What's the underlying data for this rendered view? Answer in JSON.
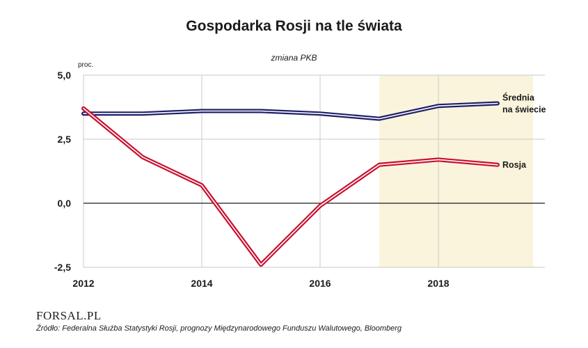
{
  "header": {
    "title": "Gospodarka Rosji na tle świata",
    "subtitle": "zmiana PKB",
    "unit": "proc."
  },
  "footer": {
    "logo": "FORSAL.PL",
    "source": "Źródło: Federalna Służba Statystyki Rosji, prognozy Międzynarodowego Funduszu Walutowego, Bloomberg"
  },
  "colors": {
    "world": "#1f1f6b",
    "russia": "#c8102e",
    "forecast_band": "#fbf4dc",
    "zero_line": "#1a1a1a",
    "grid": "#c9c9c9"
  },
  "chart_data": {
    "type": "line",
    "title": "Gospodarka Rosji na tle świata",
    "subtitle": "zmiana PKB",
    "ylabel": "proc.",
    "xlim": [
      2012,
      2019.8
    ],
    "ylim": [
      -2.5,
      5.0
    ],
    "x_ticks": [
      "2012",
      "2014",
      "2016",
      "2018"
    ],
    "y_ticks": [
      "5,0",
      "2,5",
      "0,0",
      "-2,5"
    ],
    "x_tick_values": [
      2012,
      2014,
      2016,
      2018
    ],
    "y_tick_values": [
      5.0,
      2.5,
      0.0,
      -2.5
    ],
    "forecast_from": 2017,
    "forecast_to": 2019.6,
    "grid": true,
    "series": [
      {
        "name": "Średnia na świecie",
        "label_lines": [
          "Średnia",
          "na świecie"
        ],
        "x": [
          2012,
          2013,
          2014,
          2015,
          2016,
          2017,
          2018,
          2019
        ],
        "y": [
          3.5,
          3.5,
          3.6,
          3.6,
          3.5,
          3.3,
          3.8,
          3.9
        ]
      },
      {
        "name": "Rosja",
        "label_lines": [
          "Rosja"
        ],
        "x": [
          2012,
          2013,
          2014,
          2015,
          2016,
          2017,
          2018,
          2019
        ],
        "y": [
          3.7,
          1.8,
          0.7,
          -2.4,
          -0.1,
          1.5,
          1.7,
          1.5
        ]
      }
    ]
  }
}
